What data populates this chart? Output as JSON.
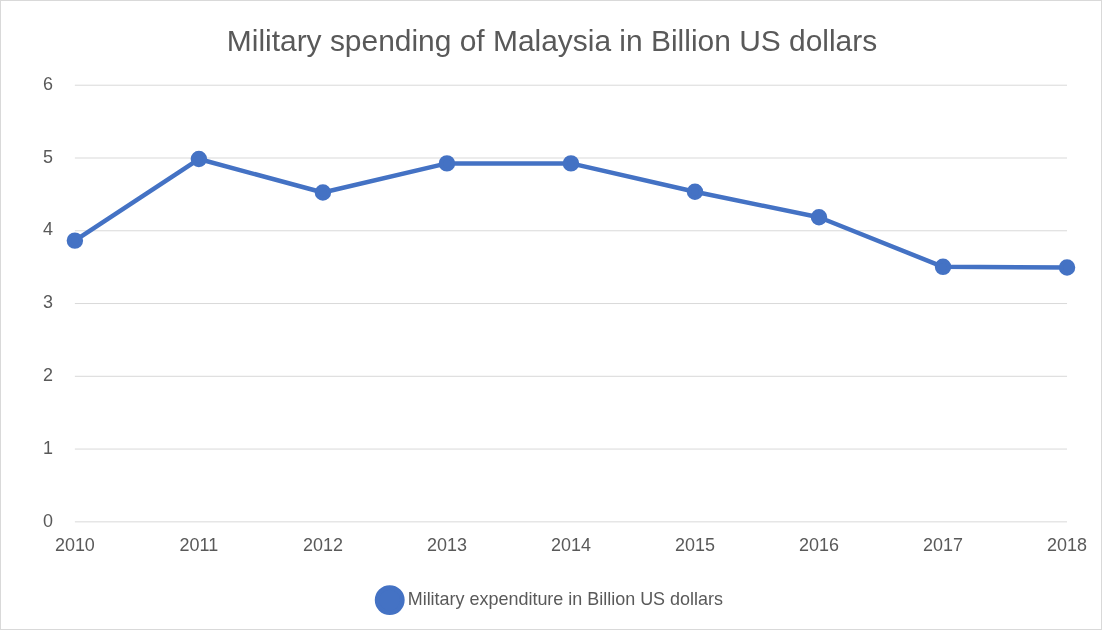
{
  "chart_data": {
    "type": "line",
    "title": "Military spending of Malaysia in Billion US dollars",
    "categories": [
      "2010",
      "2011",
      "2012",
      "2013",
      "2014",
      "2015",
      "2016",
      "2017",
      "2018"
    ],
    "series": [
      {
        "name": "Military expenditure in Billion US dollars",
        "color": "#4472c4",
        "values": [
          3.86,
          4.98,
          4.52,
          4.92,
          4.92,
          4.53,
          4.18,
          3.5,
          3.49
        ]
      }
    ],
    "ylim": [
      0,
      6
    ],
    "yticks": [
      0,
      1,
      2,
      3,
      4,
      5,
      6
    ],
    "grid": "y",
    "legend": "bottom",
    "marker": "circle",
    "line_style": "solid"
  }
}
